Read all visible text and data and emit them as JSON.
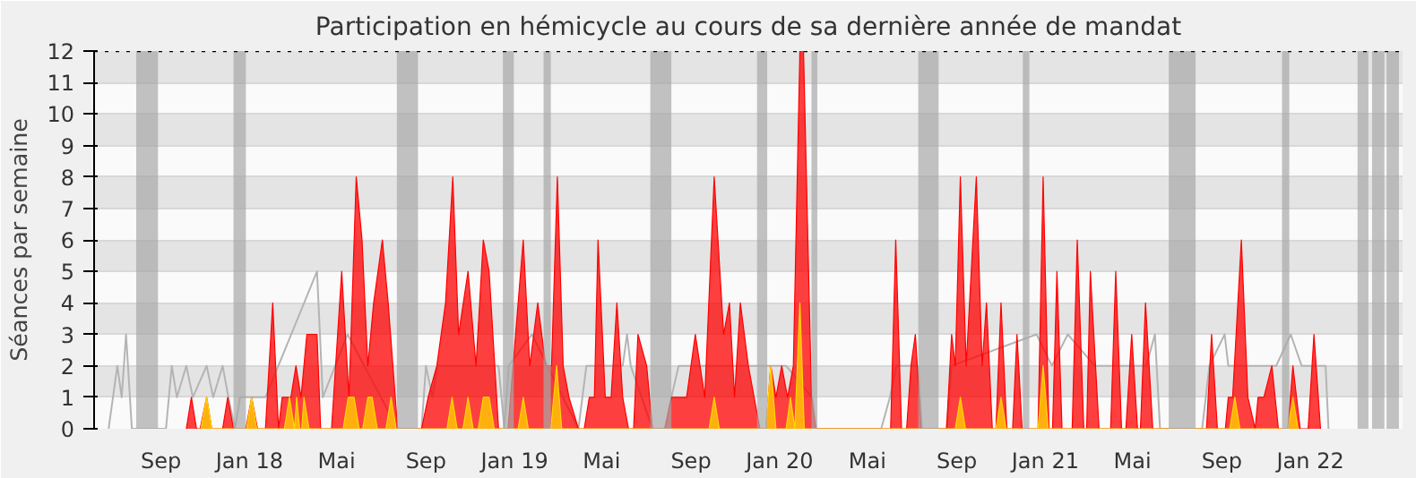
{
  "chart_data": {
    "type": "area",
    "title": "Participation en hémicycle au cours de sa dernière année de mandat",
    "ylabel": "Séances par semaine",
    "xlim": [
      "2017-06-01",
      "2022-05-08"
    ],
    "ylim": [
      0,
      12
    ],
    "yticks": [
      0,
      1,
      2,
      3,
      4,
      5,
      6,
      7,
      8,
      9,
      10,
      11,
      12
    ],
    "xticks": [
      {
        "value": "2017-09-01",
        "label": "Sep"
      },
      {
        "value": "2018-01-01",
        "label": "Jan 18"
      },
      {
        "value": "2018-05-01",
        "label": "Mai"
      },
      {
        "value": "2018-09-01",
        "label": "Sep"
      },
      {
        "value": "2019-01-01",
        "label": "Jan 19"
      },
      {
        "value": "2019-05-01",
        "label": "Mai"
      },
      {
        "value": "2019-09-01",
        "label": "Sep"
      },
      {
        "value": "2020-01-01",
        "label": "Jan 20"
      },
      {
        "value": "2020-05-01",
        "label": "Mai"
      },
      {
        "value": "2020-09-01",
        "label": "Sep"
      },
      {
        "value": "2021-01-01",
        "label": "Jan 21"
      },
      {
        "value": "2021-05-01",
        "label": "Mai"
      },
      {
        "value": "2021-09-01",
        "label": "Sep"
      },
      {
        "value": "2022-01-01",
        "label": "Jan 22"
      }
    ],
    "grid": "y",
    "ref_lines": [
      {
        "axis": "y",
        "value": 12,
        "color": "#000000",
        "line_style": "dotted"
      }
    ],
    "bands": [
      {
        "axis": "x",
        "from": "2017-07-29",
        "to": "2017-08-28",
        "color": "#a8a8a8"
      },
      {
        "axis": "x",
        "from": "2017-12-10",
        "to": "2017-12-27",
        "color": "#a8a8a8"
      },
      {
        "axis": "x",
        "from": "2018-07-23",
        "to": "2018-08-21",
        "color": "#a8a8a8"
      },
      {
        "axis": "x",
        "from": "2018-12-16",
        "to": "2018-12-31",
        "color": "#a8a8a8"
      },
      {
        "axis": "x",
        "from": "2019-02-10",
        "to": "2019-02-20",
        "color": "#a8a8a8"
      },
      {
        "axis": "x",
        "from": "2019-07-07",
        "to": "2019-08-05",
        "color": "#a8a8a8"
      },
      {
        "axis": "x",
        "from": "2019-12-01",
        "to": "2019-12-15",
        "color": "#a8a8a8"
      },
      {
        "axis": "x",
        "from": "2020-02-14",
        "to": "2020-02-22",
        "color": "#a8a8a8"
      },
      {
        "axis": "x",
        "from": "2020-07-10",
        "to": "2020-08-07",
        "color": "#a8a8a8"
      },
      {
        "axis": "x",
        "from": "2020-12-01",
        "to": "2020-12-10",
        "color": "#a8a8a8"
      },
      {
        "axis": "x",
        "from": "2021-06-20",
        "to": "2021-07-27",
        "color": "#a8a8a8"
      },
      {
        "axis": "x",
        "from": "2021-11-23",
        "to": "2021-12-03",
        "color": "#a8a8a8"
      },
      {
        "axis": "x",
        "from": "2022-03-07",
        "to": "2022-03-22",
        "color": "#a8a8a8"
      },
      {
        "axis": "x",
        "from": "2022-03-27",
        "to": "2022-04-13",
        "color": "#a8a8a8"
      },
      {
        "axis": "x",
        "from": "2022-04-16",
        "to": "2022-05-03",
        "color": "#a8a8a8"
      }
    ],
    "series": [
      {
        "type": "line",
        "color": "#b4b4b4",
        "x": [
          "2017-06-21",
          "2017-07-03",
          "2017-07-09",
          "2017-07-15",
          "2017-07-23",
          "2017-09-08",
          "2017-09-16",
          "2017-09-23",
          "2017-10-06",
          "2017-10-15",
          "2017-11-03",
          "2017-11-12",
          "2017-11-25",
          "2017-12-03",
          "2017-12-12",
          "2017-12-19",
          "2018-01-23",
          "2018-04-04",
          "2018-04-12",
          "2018-05-16",
          "2018-07-24",
          "2018-08-26",
          "2018-09-01",
          "2018-09-10",
          "2018-09-17",
          "2018-12-10",
          "2018-12-18",
          "2018-12-24",
          "2019-01-25",
          "2019-03-30",
          "2019-04-10",
          "2019-05-30",
          "2019-06-05",
          "2019-06-10",
          "2019-07-10",
          "2019-07-27",
          "2019-08-05",
          "2019-08-15",
          "2019-12-10",
          "2020-01-10",
          "2020-02-15",
          "2020-02-20",
          "2020-05-20",
          "2020-06-01",
          "2020-06-10",
          "2020-07-10",
          "2020-07-15",
          "2020-08-18",
          "2020-08-25",
          "2020-12-20",
          "2021-01-10",
          "2021-02-01",
          "2021-03-10",
          "2021-04-10",
          "2021-05-20",
          "2021-06-01",
          "2021-06-08",
          "2021-08-05",
          "2021-08-15",
          "2021-09-05",
          "2021-09-10",
          "2021-10-15",
          "2021-11-15",
          "2021-12-05",
          "2021-12-20",
          "2022-01-10",
          "2022-01-22",
          "2022-01-26"
        ],
        "values": [
          0,
          2,
          1,
          3,
          0,
          0,
          2,
          1,
          2,
          1,
          2,
          1,
          2,
          1,
          0,
          1,
          1,
          5,
          1,
          3,
          0,
          0,
          2,
          1,
          2,
          2,
          0,
          2,
          3,
          0,
          2,
          2,
          3,
          2,
          0,
          0,
          1,
          2,
          2,
          2,
          1,
          0,
          0,
          1,
          2,
          2,
          0,
          0,
          2,
          3,
          2,
          3,
          2,
          2,
          2,
          3,
          0,
          0,
          2,
          3,
          2,
          2,
          2,
          3,
          2,
          2,
          2,
          0
        ]
      },
      {
        "color": "#ff0000",
        "x": [
          "2017-10-06",
          "2017-10-13",
          "2017-10-20",
          "2017-10-25",
          "2017-11-03",
          "2017-11-10",
          "2017-11-25",
          "2017-12-02",
          "2017-12-10",
          "2017-12-27",
          "2018-01-04",
          "2018-01-12",
          "2018-01-23",
          "2018-02-02",
          "2018-02-10",
          "2018-02-15",
          "2018-02-27",
          "2018-03-06",
          "2018-03-13",
          "2018-03-21",
          "2018-03-28",
          "2018-04-04",
          "2018-04-09",
          "2018-04-24",
          "2018-05-08",
          "2018-05-18",
          "2018-05-28",
          "2018-06-05",
          "2018-06-13",
          "2018-06-21",
          "2018-07-03",
          "2018-07-11",
          "2018-07-24",
          "2018-08-26",
          "2018-09-04",
          "2018-09-16",
          "2018-09-28",
          "2018-10-08",
          "2018-10-16",
          "2018-10-29",
          "2018-11-09",
          "2018-11-19",
          "2018-11-27",
          "2018-12-10",
          "2018-12-23",
          "2018-12-30",
          "2019-01-13",
          "2019-01-22",
          "2019-02-02",
          "2019-02-13",
          "2019-02-21",
          "2019-03-01",
          "2019-03-09",
          "2019-03-17",
          "2019-03-30",
          "2019-04-07",
          "2019-04-14",
          "2019-04-21",
          "2019-04-26",
          "2019-05-06",
          "2019-05-14",
          "2019-05-22",
          "2019-05-30",
          "2019-06-07",
          "2019-06-14",
          "2019-06-20",
          "2019-07-02",
          "2019-07-10",
          "2019-07-27",
          "2019-08-05",
          "2019-08-13",
          "2019-08-26",
          "2019-09-07",
          "2019-09-20",
          "2019-10-03",
          "2019-10-16",
          "2019-10-24",
          "2019-10-31",
          "2019-11-08",
          "2019-11-19",
          "2019-11-27",
          "2019-12-05",
          "2019-12-13",
          "2019-12-20",
          "2019-12-27",
          "2020-01-04",
          "2020-01-12",
          "2020-01-20",
          "2020-01-29",
          "2020-02-03",
          "2020-02-14",
          "2020-02-20",
          "2020-06-02",
          "2020-06-09",
          "2020-06-17",
          "2020-06-24",
          "2020-06-30",
          "2020-07-06",
          "2020-07-14",
          "2020-08-18",
          "2020-08-25",
          "2020-08-30",
          "2020-09-06",
          "2020-09-14",
          "2020-09-28",
          "2020-10-06",
          "2020-10-12",
          "2020-10-20",
          "2020-10-25",
          "2020-11-01",
          "2020-11-09",
          "2020-11-17",
          "2020-11-23",
          "2020-11-30",
          "2020-12-22",
          "2020-12-29",
          "2021-01-06",
          "2021-01-11",
          "2021-01-17",
          "2021-01-24",
          "2021-02-07",
          "2021-02-14",
          "2021-02-23",
          "2021-02-27",
          "2021-03-04",
          "2021-03-16",
          "2021-04-01",
          "2021-04-08",
          "2021-04-16",
          "2021-04-22",
          "2021-04-30",
          "2021-05-08",
          "2021-05-12",
          "2021-05-19",
          "2021-05-29",
          "2021-08-11",
          "2021-08-18",
          "2021-08-26",
          "2021-09-06",
          "2021-09-10",
          "2021-09-16",
          "2021-09-28",
          "2021-10-07",
          "2021-10-17",
          "2021-10-21",
          "2021-10-29",
          "2021-11-09",
          "2021-11-18",
          "2021-12-01",
          "2021-12-08",
          "2021-12-18",
          "2021-12-29",
          "2022-01-06",
          "2022-01-15"
        ],
        "values": [
          0,
          1,
          0,
          0,
          1,
          0,
          0,
          1,
          0,
          0,
          1,
          0,
          0,
          4,
          0,
          1,
          1,
          2,
          1,
          3,
          3,
          3,
          0,
          0,
          5,
          1,
          8,
          6,
          2,
          4,
          6,
          4,
          0,
          0,
          1,
          2,
          4,
          8,
          3,
          5,
          2,
          6,
          5,
          0,
          0,
          2,
          6,
          2,
          4,
          2,
          2,
          8,
          2,
          1,
          0,
          0,
          1,
          1,
          6,
          1,
          1,
          4,
          1,
          0,
          0,
          3,
          2,
          0,
          0,
          1,
          1,
          1,
          3,
          1,
          8,
          3,
          4,
          1,
          4,
          2,
          1,
          0,
          0,
          2,
          1,
          2,
          1,
          2,
          12,
          12,
          1,
          0,
          0,
          6,
          0,
          0,
          2,
          3,
          0,
          0,
          3,
          2,
          8,
          2,
          8,
          2,
          4,
          0,
          0,
          4,
          0,
          0,
          3,
          0,
          0,
          8,
          0,
          0,
          5,
          0,
          0,
          6,
          0,
          0,
          5,
          0,
          0,
          5,
          0,
          0,
          3,
          0,
          0,
          4,
          0,
          0,
          3,
          0,
          0,
          1,
          1,
          6,
          1,
          0,
          1,
          1,
          2,
          0,
          0,
          2,
          0,
          0,
          3,
          0
        ]
      },
      {
        "color": "#ffd700",
        "x": [
          "2017-10-26",
          "2017-11-03",
          "2017-11-10",
          "2017-12-28",
          "2018-01-04",
          "2018-01-11",
          "2018-02-18",
          "2018-02-25",
          "2018-03-04",
          "2018-03-07",
          "2018-03-11",
          "2018-03-14",
          "2018-03-17",
          "2018-03-24",
          "2018-05-10",
          "2018-05-17",
          "2018-05-25",
          "2018-06-01",
          "2018-06-06",
          "2018-06-13",
          "2018-06-19",
          "2018-06-26",
          "2018-07-08",
          "2018-07-15",
          "2018-07-22",
          "2018-09-30",
          "2018-10-07",
          "2018-10-14",
          "2018-10-22",
          "2018-10-29",
          "2018-11-05",
          "2018-11-12",
          "2018-11-19",
          "2018-11-27",
          "2018-12-04",
          "2019-01-06",
          "2019-01-13",
          "2019-01-20",
          "2019-02-20",
          "2019-02-28",
          "2019-03-07",
          "2019-09-26",
          "2019-10-03",
          "2019-10-10",
          "2019-12-13",
          "2019-12-20",
          "2019-12-27",
          "2020-01-10",
          "2020-01-16",
          "2020-01-22",
          "2020-01-29",
          "2020-02-04",
          "2020-08-30",
          "2020-09-06",
          "2020-09-13",
          "2020-10-25",
          "2020-11-01",
          "2020-11-08",
          "2020-12-22",
          "2020-12-29",
          "2021-01-05",
          "2021-09-12",
          "2021-09-19",
          "2021-09-26",
          "2021-12-01",
          "2021-12-08",
          "2021-12-15"
        ],
        "values": [
          0,
          1,
          0,
          0,
          1,
          0,
          0,
          1,
          0,
          1,
          0,
          0,
          1,
          0,
          0,
          1,
          1,
          0,
          0,
          1,
          1,
          0,
          0,
          1,
          0,
          0,
          1,
          0,
          0,
          1,
          0,
          0,
          1,
          1,
          0,
          0,
          1,
          0,
          0,
          2,
          0,
          0,
          1,
          0,
          0,
          2,
          0,
          0,
          1,
          0,
          4,
          0,
          0,
          1,
          0,
          0,
          1,
          0,
          0,
          2,
          0,
          0,
          1,
          0,
          0,
          1,
          0
        ]
      }
    ]
  }
}
